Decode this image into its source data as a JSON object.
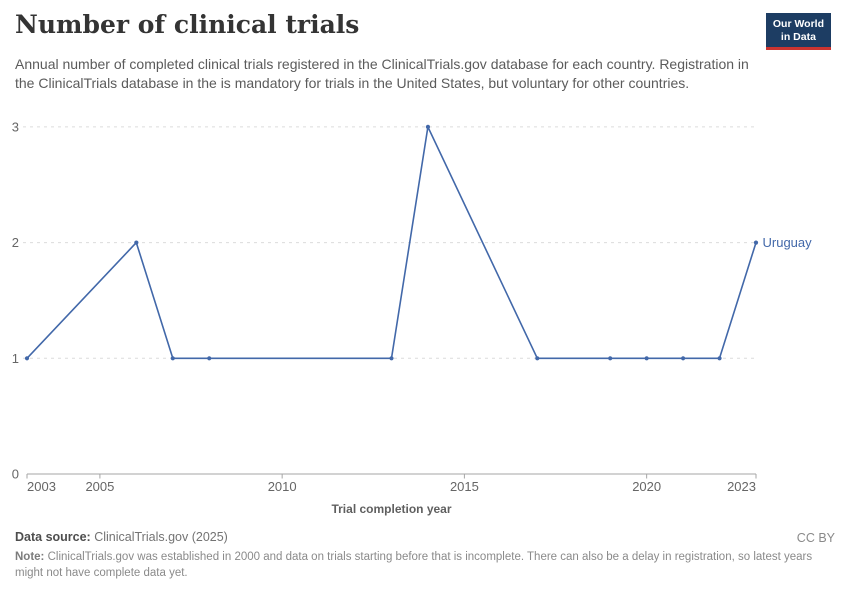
{
  "header": {
    "title": "Number of clinical trials",
    "subtitle": "Annual number of completed clinical trials registered in the ClinicalTrials.gov database for each country. Registration in the ClinicalTrials database in the is mandatory for trials in the United States, but voluntary for other countries.",
    "logo": {
      "line1": "Our World",
      "line2": "in Data",
      "bg_color": "#1d3d63",
      "bar_color": "#cb3430"
    }
  },
  "chart_data": {
    "type": "line",
    "title": "Number of clinical trials",
    "xlabel": "Trial completion year",
    "ylabel": "",
    "x": [
      2003,
      2006,
      2007,
      2008,
      2013,
      2014,
      2017,
      2019,
      2020,
      2021,
      2022,
      2023
    ],
    "series": [
      {
        "name": "Uruguay",
        "values": [
          1,
          2,
          1,
          1,
          1,
          3,
          1,
          1,
          1,
          1,
          1,
          2
        ],
        "color": "#4268a9"
      }
    ],
    "xlim": [
      2003,
      2023
    ],
    "ylim": [
      0,
      3
    ],
    "xticks": [
      2003,
      2005,
      2010,
      2015,
      2020,
      2023
    ],
    "yticks": [
      0,
      1,
      2,
      3
    ],
    "grid": "horizontal-dashed",
    "legend_position": "end-of-line-label",
    "end_label": "Uruguay",
    "colors": {
      "line": "#4268a9",
      "gridline": "#dcdcdc",
      "axis": "#a5a5a5",
      "tick_label": "#666666",
      "axis_title": "#5f5f5f"
    }
  },
  "footer": {
    "source_label": "Data source:",
    "source_value": "ClinicalTrials.gov (2025)",
    "license": "CC BY",
    "note_label": "Note:",
    "note_text": "ClinicalTrials.gov was established in 2000 and data on trials starting before that is incomplete. There can also be a delay in registration, so latest years might not have complete data yet."
  }
}
